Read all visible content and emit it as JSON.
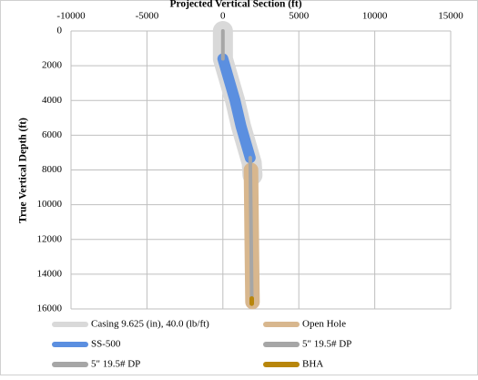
{
  "chart_data": {
    "type": "line",
    "title": "Projected Vertical Section (ft)",
    "y_label": "True Vertical Depth (ft)",
    "xlim": [
      -10000,
      15000
    ],
    "xticks": [
      -10000,
      -5000,
      0,
      5000,
      10000,
      15000
    ],
    "ylim": [
      0,
      16000
    ],
    "yticks": [
      0,
      2000,
      4000,
      6000,
      8000,
      10000,
      12000,
      14000,
      16000
    ],
    "y_inverted": true,
    "grid": true,
    "x_axis_position": "top",
    "legend": "bottom",
    "series": [
      {
        "name": "Casing 9.625 (in), 40.0 (lb/ft)",
        "color": "#d9d9d9",
        "width": 22,
        "x": [
          0,
          0,
          300,
          800,
          1200,
          1700,
          1900,
          1950
        ],
        "y": [
          0,
          1600,
          2500,
          4000,
          5500,
          7000,
          7600,
          8300
        ]
      },
      {
        "name": "Open Hole",
        "color": "#d8b78e",
        "width": 16,
        "x": [
          1850,
          1900,
          1950
        ],
        "y": [
          8000,
          12000,
          15600
        ]
      },
      {
        "name": "SS-500",
        "color": "#5b8fe0",
        "width": 12,
        "x": [
          0,
          300,
          800,
          1200,
          1700,
          1800
        ],
        "y": [
          1600,
          2500,
          4000,
          5500,
          7000,
          7300
        ]
      },
      {
        "name": "5\" 19.5# DP",
        "color": "#a6a6a6",
        "width": 4,
        "x": [
          1800,
          1850,
          1900
        ],
        "y": [
          7300,
          11000,
          15400
        ]
      },
      {
        "name": "5\" 19.5# DP",
        "color": "#a6a6a6",
        "width": 4,
        "x": [
          0,
          0
        ],
        "y": [
          0,
          1600
        ]
      },
      {
        "name": "BHA",
        "color": "#b8860b",
        "width": 5,
        "x": [
          1900,
          1900
        ],
        "y": [
          15400,
          15700
        ]
      }
    ]
  }
}
